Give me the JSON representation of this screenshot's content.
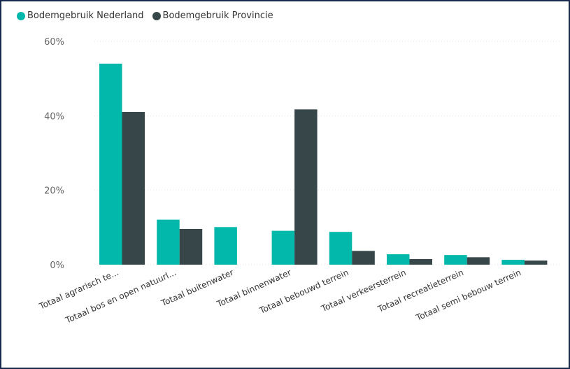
{
  "chart_data": {
    "type": "bar",
    "categories": [
      "Totaal agrarisch te...",
      "Totaal bos en open natuurl...",
      "Totaal buitenwater",
      "Totaal binnenwater",
      "Totaal bebouwd terrein",
      "Totaal verkeersterrein",
      "Totaal recreatieterrein",
      "Totaal semi bebouw terrein"
    ],
    "series": [
      {
        "name": "Bodemgebruik Nederland",
        "color": "#01b8aa",
        "values": [
          54.0,
          12.1,
          10.1,
          9.1,
          8.8,
          2.8,
          2.6,
          1.3
        ]
      },
      {
        "name": "Bodemgebruik Provincie",
        "color": "#374649",
        "values": [
          41.0,
          9.6,
          0,
          41.7,
          3.7,
          1.5,
          2.0,
          1.1
        ]
      }
    ],
    "yticks": [
      "0%",
      "20%",
      "40%",
      "60%"
    ],
    "ytick_values": [
      0,
      20,
      40,
      60
    ],
    "ylim": [
      0,
      60
    ],
    "legend_position": "top-left",
    "grid": true
  }
}
